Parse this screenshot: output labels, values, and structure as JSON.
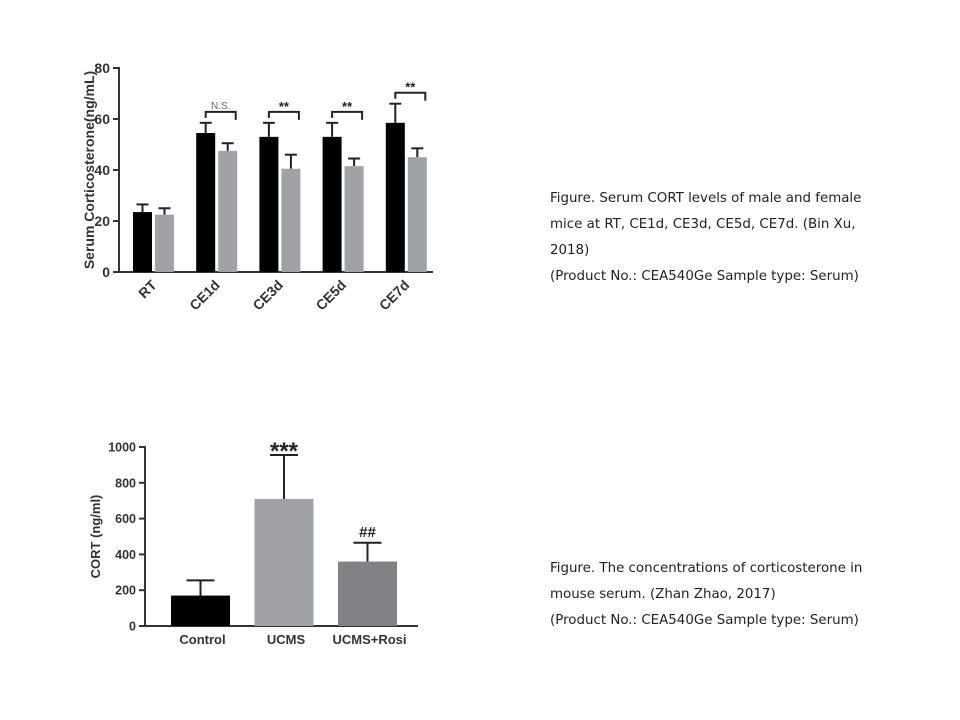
{
  "chart_data": [
    {
      "type": "bar",
      "ylabel": "Serum Corticosterone(ng/mL)",
      "xlabel": "",
      "ylim": [
        0,
        80
      ],
      "yticks": [
        "0",
        "20",
        "40",
        "60",
        "80"
      ],
      "categories": [
        "RT",
        "CE1d",
        "CE3d",
        "CE5d",
        "CE7d"
      ],
      "series": [
        {
          "color": "#000000",
          "values": [
            23.5,
            54.5,
            53,
            53,
            58.5
          ],
          "errors": [
            3,
            4,
            5.5,
            5.5,
            7.5
          ]
        },
        {
          "color": "#a0a2a5",
          "values": [
            22.5,
            47.5,
            40.5,
            41.5,
            45
          ],
          "errors": [
            2.5,
            3,
            5.5,
            3,
            3.5
          ]
        }
      ],
      "annotations": [
        {
          "category": "CE1d",
          "label": "N.S."
        },
        {
          "category": "CE3d",
          "label": "**"
        },
        {
          "category": "CE5d",
          "label": "**"
        },
        {
          "category": "CE7d",
          "label": "**"
        }
      ]
    },
    {
      "type": "bar",
      "ylabel": "CORT (ng/ml)",
      "xlabel": "",
      "ylim": [
        0,
        1000
      ],
      "yticks": [
        "0",
        "200",
        "400",
        "600",
        "800",
        "1000"
      ],
      "categories": [
        "Control",
        "UCMS",
        "UCMS+Rosi"
      ],
      "values": [
        170,
        710,
        360
      ],
      "errors": [
        85,
        245,
        105
      ],
      "colors": [
        "#000000",
        "#a0a2a5",
        "#808285"
      ],
      "annotations": [
        {
          "category": "UCMS",
          "label": "***"
        },
        {
          "category": "UCMS+Rosi",
          "label": "##"
        }
      ]
    }
  ],
  "captions": {
    "first": {
      "line1": "Figure. Serum CORT levels of male and female",
      "line2": "mice at RT, CE1d, CE3d, CE5d, CE7d. (Bin Xu,",
      "line3": "2018)",
      "line4": "(Product No.: CEA540Ge Sample type: Serum)"
    },
    "second": {
      "line1": "Figure. The concentrations of corticosterone in",
      "line2": "mouse serum. (Zhan Zhao, 2017)",
      "line3": "(Product No.: CEA540Ge Sample type: Serum)"
    }
  }
}
